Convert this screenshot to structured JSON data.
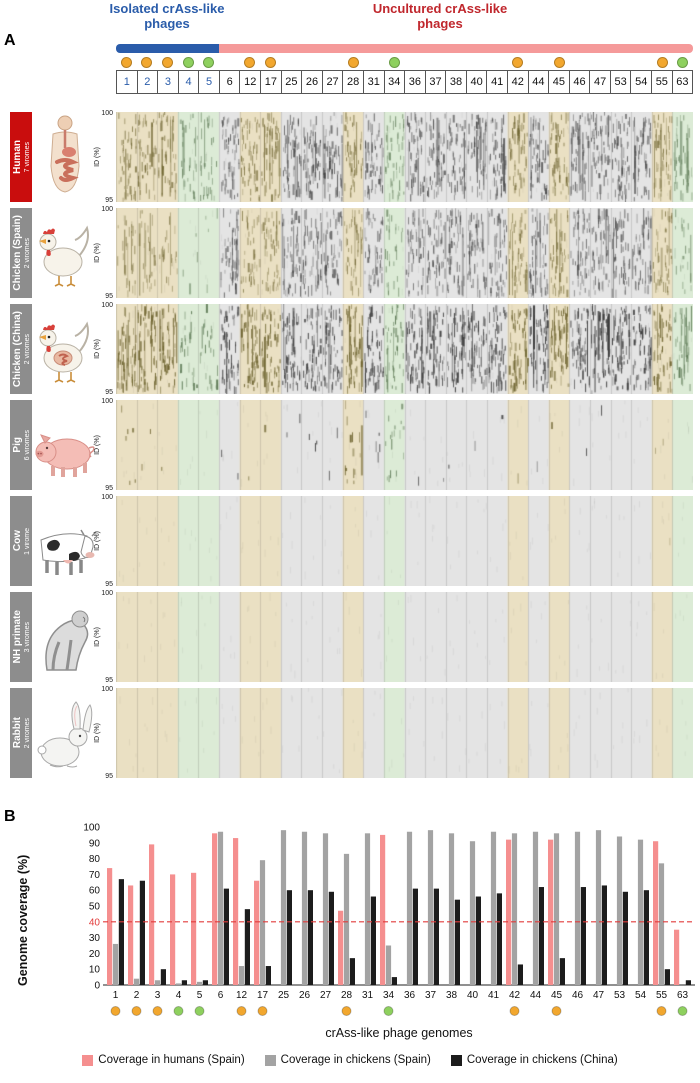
{
  "panelA": {
    "label": "A",
    "isolated_header": "Isolated crAss-like phages",
    "uncultured_header": "Uncultured crAss-like phages",
    "header_colors": {
      "isolated": "#2a5caa",
      "uncultured": "#c0272d"
    },
    "bar_colors": {
      "isolated": "#2a5caa",
      "uncultured": "#f59a9a"
    },
    "dot_colors": {
      "orange": "#f2a72e",
      "green": "#8ed05e"
    },
    "highlight_colors": {
      "orange": "#eae0c3",
      "green": "#dcebd6",
      "none": "#e4e4e4"
    },
    "palette": {
      "tick_none": "#3c3c3c",
      "tick_orange": "#6e6430",
      "tick_green": "#5e7a56",
      "column_border": "rgba(0,0,0,0.12)"
    },
    "isolated_count": 5,
    "columns": [
      {
        "id": "1",
        "dot": "orange"
      },
      {
        "id": "2",
        "dot": "orange"
      },
      {
        "id": "3",
        "dot": "orange"
      },
      {
        "id": "4",
        "dot": "green"
      },
      {
        "id": "5",
        "dot": "green"
      },
      {
        "id": "6",
        "dot": null
      },
      {
        "id": "12",
        "dot": "orange"
      },
      {
        "id": "17",
        "dot": "orange"
      },
      {
        "id": "25",
        "dot": null
      },
      {
        "id": "26",
        "dot": null
      },
      {
        "id": "27",
        "dot": null
      },
      {
        "id": "28",
        "dot": "orange"
      },
      {
        "id": "31",
        "dot": null
      },
      {
        "id": "34",
        "dot": "green"
      },
      {
        "id": "36",
        "dot": null
      },
      {
        "id": "37",
        "dot": null
      },
      {
        "id": "38",
        "dot": null
      },
      {
        "id": "40",
        "dot": null
      },
      {
        "id": "41",
        "dot": null
      },
      {
        "id": "42",
        "dot": "orange"
      },
      {
        "id": "44",
        "dot": null
      },
      {
        "id": "45",
        "dot": "orange"
      },
      {
        "id": "46",
        "dot": null
      },
      {
        "id": "47",
        "dot": null
      },
      {
        "id": "53",
        "dot": null
      },
      {
        "id": "54",
        "dot": null
      },
      {
        "id": "55",
        "dot": "orange"
      },
      {
        "id": "63",
        "dot": "green"
      }
    ],
    "y_axis": {
      "label": "ID (%)",
      "max": "100",
      "min": "95"
    },
    "rows": [
      {
        "name": "Human",
        "viromes": "7 viromes",
        "label_bg": "#c90d0d",
        "tick_alpha": 0.6,
        "densities": [
          48,
          48,
          46,
          30,
          30,
          55,
          52,
          52,
          55,
          55,
          55,
          50,
          55,
          46,
          55,
          55,
          55,
          55,
          55,
          52,
          55,
          52,
          55,
          55,
          55,
          55,
          50,
          40
        ]
      },
      {
        "name": "Chicken (Spain)",
        "viromes": "2 viromes",
        "label_bg": "#8d8d8d",
        "tick_alpha": 0.55,
        "densities": [
          28,
          26,
          22,
          4,
          4,
          52,
          38,
          50,
          52,
          52,
          52,
          44,
          52,
          28,
          52,
          52,
          52,
          52,
          52,
          50,
          52,
          50,
          52,
          52,
          52,
          52,
          44,
          20
        ]
      },
      {
        "name": "Chicken (China)",
        "viromes": "2 viromes",
        "label_bg": "#8d8d8d",
        "tick_alpha": 0.75,
        "densities": [
          60,
          58,
          54,
          24,
          24,
          60,
          55,
          55,
          60,
          60,
          60,
          55,
          60,
          44,
          60,
          60,
          60,
          60,
          60,
          58,
          60,
          58,
          60,
          60,
          60,
          60,
          54,
          34
        ]
      },
      {
        "name": "Pig",
        "viromes": "6 viromes",
        "label_bg": "#8d8d8d",
        "tick_alpha": 0.7,
        "densities": [
          6,
          2,
          1,
          0,
          0,
          2,
          1,
          1,
          2,
          3,
          2,
          14,
          5,
          16,
          1,
          1,
          1,
          1,
          1,
          1,
          1,
          1,
          1,
          1,
          0,
          0,
          2,
          0
        ]
      },
      {
        "name": "Cow",
        "viromes": "1 virome",
        "label_bg": "#8d8d8d",
        "tick_alpha": 0.5,
        "densities": [
          0,
          0,
          0,
          0,
          0,
          0,
          0,
          0,
          0,
          0,
          0,
          0,
          0,
          0,
          0,
          0,
          0,
          0,
          0,
          0,
          0,
          0,
          0,
          0,
          0,
          0,
          1,
          0
        ]
      },
      {
        "name": "NH primate",
        "viromes": "3 viromes",
        "label_bg": "#8d8d8d",
        "tick_alpha": 0.5,
        "densities": [
          0,
          0,
          0,
          0,
          0,
          0,
          0,
          0,
          0,
          0,
          0,
          0,
          0,
          0,
          0,
          0,
          0,
          0,
          0,
          0,
          0,
          0,
          0,
          0,
          0,
          0,
          0,
          0
        ]
      },
      {
        "name": "Rabbit",
        "viromes": "2 viromes",
        "label_bg": "#8d8d8d",
        "tick_alpha": 0.5,
        "densities": [
          0,
          0,
          0,
          0,
          0,
          0,
          0,
          0,
          0,
          0,
          0,
          0,
          0,
          0,
          0,
          0,
          0,
          0,
          0,
          0,
          0,
          0,
          0,
          0,
          0,
          0,
          0,
          0
        ]
      }
    ]
  },
  "panelB": {
    "label": "B",
    "chart_data": {
      "type": "bar",
      "title": "",
      "xlabel": "crAss-like phage genomes",
      "ylabel": "Genome coverage (%)",
      "ylim": [
        0,
        100
      ],
      "yticks": [
        0,
        10,
        20,
        30,
        40,
        50,
        60,
        70,
        80,
        90,
        100
      ],
      "threshold_line": {
        "value": 40,
        "color": "#e23b3b",
        "style": "dashed"
      },
      "categories": [
        "1",
        "2",
        "3",
        "4",
        "5",
        "6",
        "12",
        "17",
        "25",
        "26",
        "27",
        "28",
        "31",
        "34",
        "36",
        "37",
        "38",
        "40",
        "41",
        "42",
        "44",
        "45",
        "46",
        "47",
        "53",
        "54",
        "55",
        "63"
      ],
      "series": [
        {
          "name": "Coverage in humans (Spain)",
          "color": "#f58f8f",
          "values": [
            74,
            63,
            89,
            70,
            71,
            96,
            93,
            66,
            0,
            0,
            0,
            47,
            0,
            95,
            0,
            0,
            0,
            0,
            0,
            92,
            0,
            92,
            0,
            0,
            0,
            0,
            91,
            35
          ]
        },
        {
          "name": "Coverage in chickens (Spain)",
          "color": "#a3a3a3",
          "values": [
            26,
            4,
            3,
            1,
            2,
            97,
            12,
            79,
            98,
            97,
            96,
            83,
            96,
            25,
            97,
            98,
            96,
            91,
            97,
            96,
            97,
            96,
            97,
            98,
            94,
            92,
            77,
            0
          ]
        },
        {
          "name": "Coverage in chickens (China)",
          "color": "#1c1c1c",
          "values": [
            67,
            66,
            10,
            3,
            3,
            61,
            48,
            12,
            60,
            60,
            59,
            17,
            56,
            5,
            61,
            61,
            54,
            56,
            58,
            13,
            62,
            17,
            62,
            63,
            59,
            60,
            10,
            3
          ]
        }
      ],
      "legend_position": "bottom"
    }
  }
}
